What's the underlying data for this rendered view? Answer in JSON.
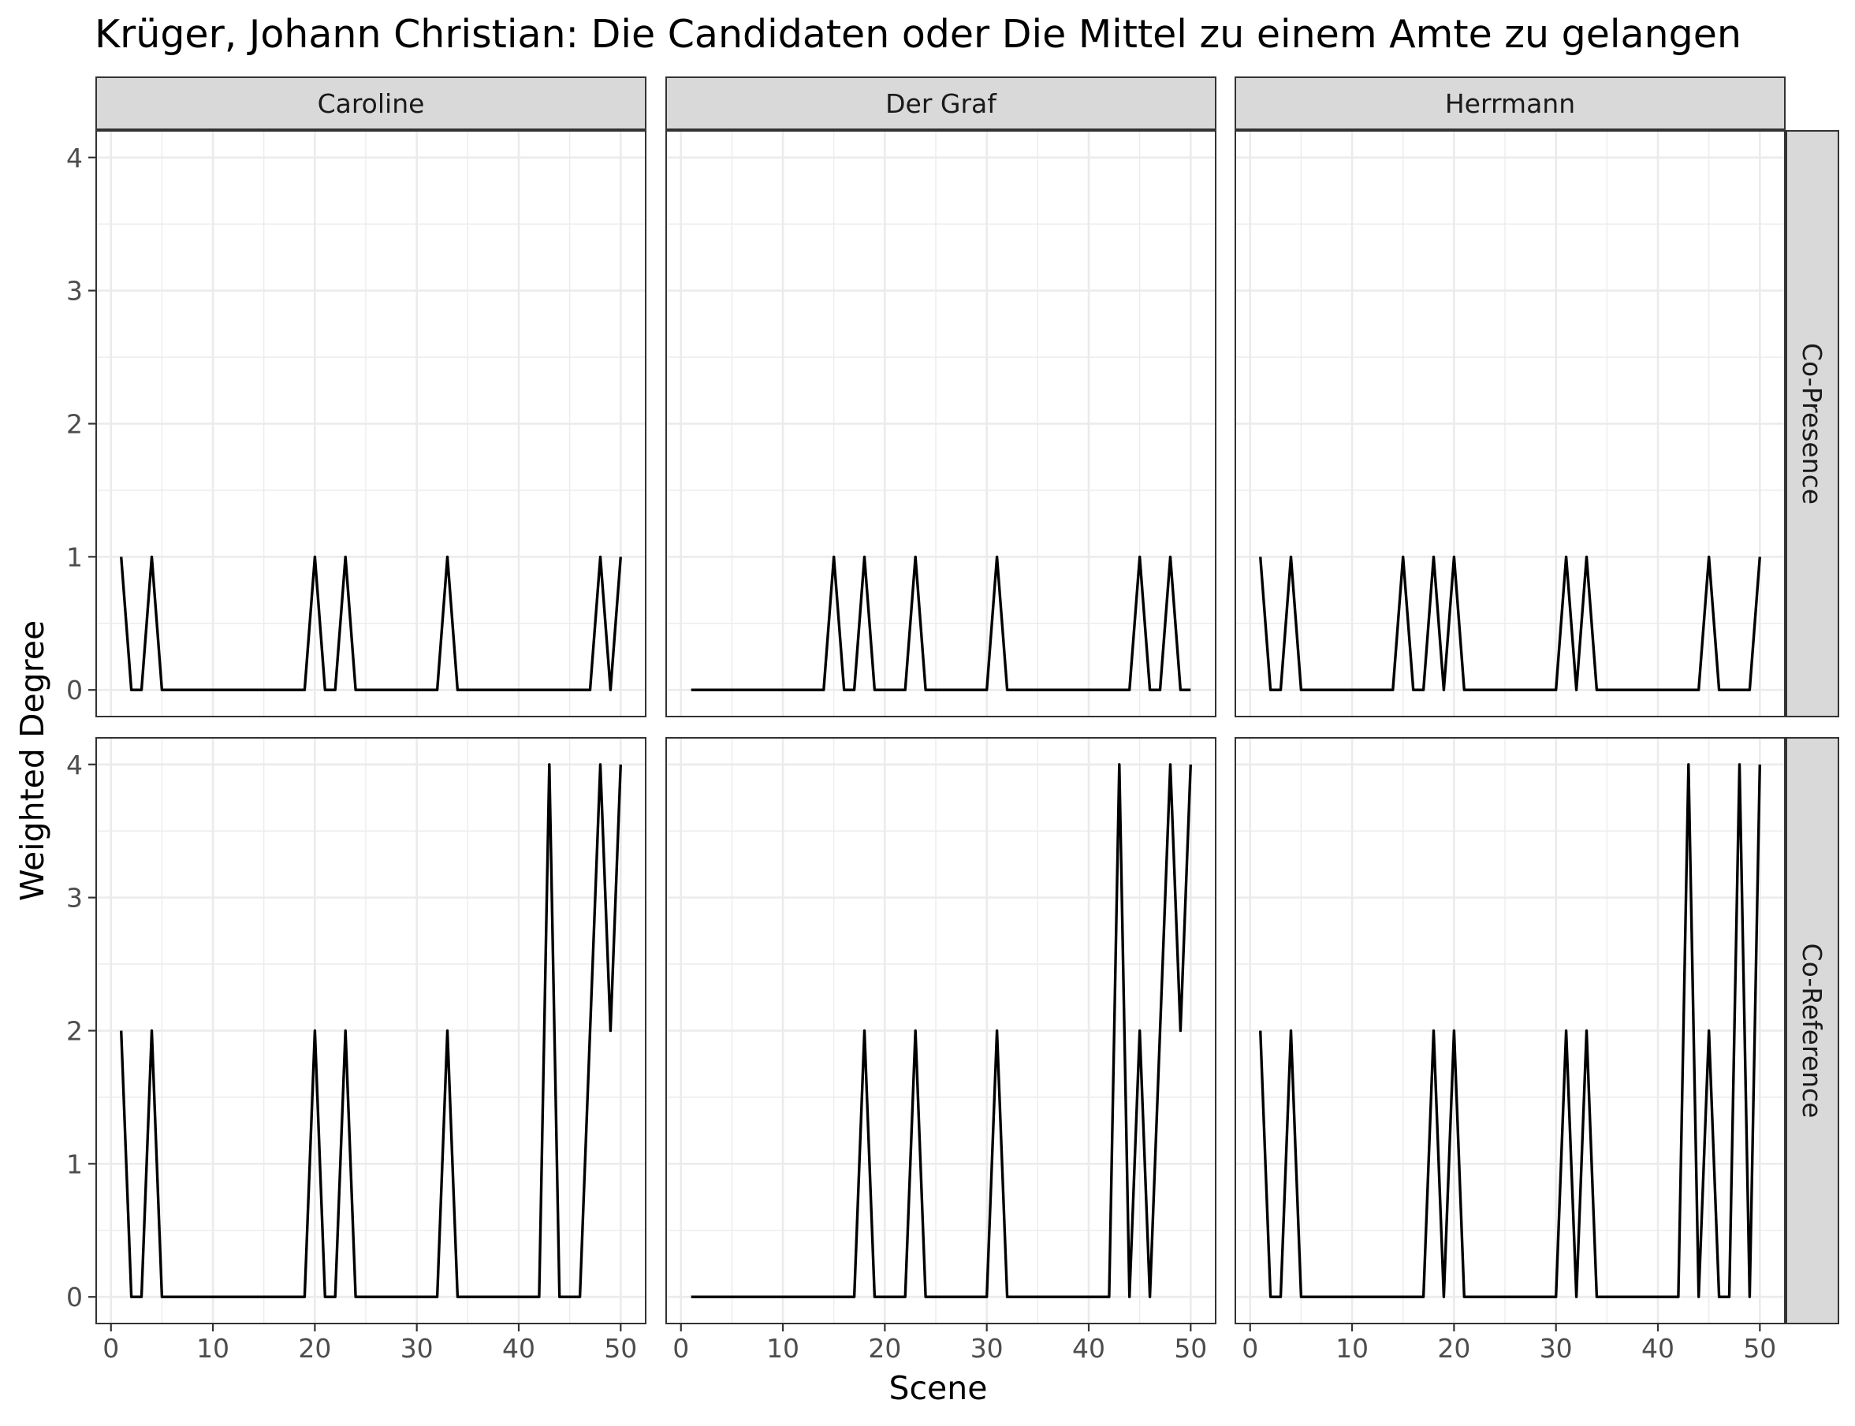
{
  "chart_data": {
    "type": "line",
    "title": "Krüger, Johann Christian: Die Candidaten oder Die Mittel zu einem Amte zu gelangen",
    "xlabel": "Scene",
    "ylabel": "Weighted Degree",
    "xlim": [
      1,
      50
    ],
    "ylim": [
      0,
      4
    ],
    "x_ticks": [
      0,
      10,
      20,
      30,
      40,
      50
    ],
    "y_ticks": [
      0,
      1,
      2,
      3,
      4
    ],
    "grid": true,
    "columns": [
      "Caroline",
      "Der Graf",
      "Herrmann"
    ],
    "rows": [
      "Co-Presence",
      "Co-Reference"
    ],
    "x": [
      1,
      2,
      3,
      4,
      5,
      6,
      7,
      8,
      9,
      10,
      11,
      12,
      13,
      14,
      15,
      16,
      17,
      18,
      19,
      20,
      21,
      22,
      23,
      24,
      25,
      26,
      27,
      28,
      29,
      30,
      31,
      32,
      33,
      34,
      35,
      36,
      37,
      38,
      39,
      40,
      41,
      42,
      43,
      44,
      45,
      46,
      47,
      48,
      49,
      50
    ],
    "panels": [
      {
        "column": "Caroline",
        "row": "Co-Presence",
        "values": [
          1,
          0,
          0,
          1,
          0,
          0,
          0,
          0,
          0,
          0,
          0,
          0,
          0,
          0,
          0,
          0,
          0,
          0,
          0,
          1,
          0,
          0,
          1,
          0,
          0,
          0,
          0,
          0,
          0,
          0,
          0,
          0,
          1,
          0,
          0,
          0,
          0,
          0,
          0,
          0,
          0,
          0,
          0,
          0,
          0,
          0,
          0,
          1,
          0,
          1
        ]
      },
      {
        "column": "Der Graf",
        "row": "Co-Presence",
        "values": [
          0,
          0,
          0,
          0,
          0,
          0,
          0,
          0,
          0,
          0,
          0,
          0,
          0,
          0,
          1,
          0,
          0,
          1,
          0,
          0,
          0,
          0,
          1,
          0,
          0,
          0,
          0,
          0,
          0,
          0,
          1,
          0,
          0,
          0,
          0,
          0,
          0,
          0,
          0,
          0,
          0,
          0,
          0,
          0,
          1,
          0,
          0,
          1,
          0,
          0
        ]
      },
      {
        "column": "Herrmann",
        "row": "Co-Presence",
        "values": [
          1,
          0,
          0,
          1,
          0,
          0,
          0,
          0,
          0,
          0,
          0,
          0,
          0,
          0,
          1,
          0,
          0,
          1,
          0,
          1,
          0,
          0,
          0,
          0,
          0,
          0,
          0,
          0,
          0,
          0,
          1,
          0,
          1,
          0,
          0,
          0,
          0,
          0,
          0,
          0,
          0,
          0,
          0,
          0,
          1,
          0,
          0,
          0,
          0,
          1
        ]
      },
      {
        "column": "Caroline",
        "row": "Co-Reference",
        "values": [
          2,
          0,
          0,
          2,
          0,
          0,
          0,
          0,
          0,
          0,
          0,
          0,
          0,
          0,
          0,
          0,
          0,
          0,
          0,
          2,
          0,
          0,
          2,
          0,
          0,
          0,
          0,
          0,
          0,
          0,
          0,
          0,
          2,
          0,
          0,
          0,
          0,
          0,
          0,
          0,
          0,
          0,
          4,
          0,
          0,
          0,
          2,
          4,
          2,
          4
        ]
      },
      {
        "column": "Der Graf",
        "row": "Co-Reference",
        "values": [
          0,
          0,
          0,
          0,
          0,
          0,
          0,
          0,
          0,
          0,
          0,
          0,
          0,
          0,
          0,
          0,
          0,
          2,
          0,
          0,
          0,
          0,
          2,
          0,
          0,
          0,
          0,
          0,
          0,
          0,
          2,
          0,
          0,
          0,
          0,
          0,
          0,
          0,
          0,
          0,
          0,
          0,
          4,
          0,
          2,
          0,
          2,
          4,
          2,
          4
        ]
      },
      {
        "column": "Herrmann",
        "row": "Co-Reference",
        "values": [
          2,
          0,
          0,
          2,
          0,
          0,
          0,
          0,
          0,
          0,
          0,
          0,
          0,
          0,
          0,
          0,
          0,
          2,
          0,
          2,
          0,
          0,
          0,
          0,
          0,
          0,
          0,
          0,
          0,
          0,
          2,
          0,
          2,
          0,
          0,
          0,
          0,
          0,
          0,
          0,
          0,
          0,
          4,
          0,
          2,
          0,
          0,
          4,
          0,
          4
        ]
      }
    ]
  }
}
